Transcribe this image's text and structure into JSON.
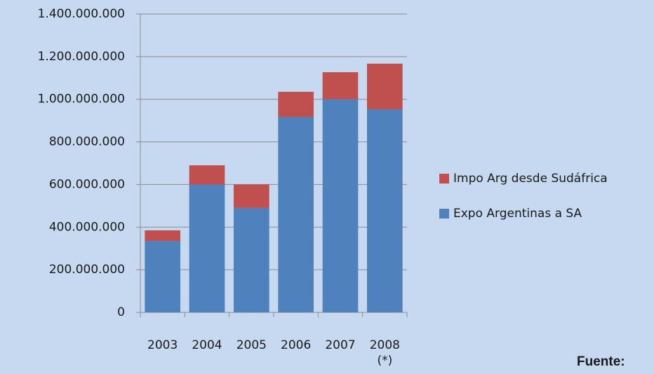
{
  "chart_data": {
    "type": "stacked_bar",
    "categories": [
      "2003",
      "2004",
      "2005",
      "2006",
      "2007",
      "2008\n(*)"
    ],
    "series": [
      {
        "name": "Expo Argentinas a SA",
        "color": "#4f81bd",
        "values": [
          335000000,
          600000000,
          490000000,
          917000000,
          1000000000,
          953000000
        ]
      },
      {
        "name": "Impo Arg desde Sudáfrica",
        "color": "#c0504d",
        "values": [
          50000000,
          90000000,
          110000000,
          118000000,
          127000000,
          214000000
        ]
      }
    ],
    "ylim": [
      0,
      1400000000
    ],
    "yticks": [
      0,
      {
        "value": 200000000,
        "label": "200.000.000"
      },
      {
        "value": 400000000,
        "label": "400.000.000"
      },
      {
        "value": 600000000,
        "label": "600.000.000"
      },
      {
        "value": 800000000,
        "label": "800.000.000"
      },
      {
        "value": 1000000000,
        "label": "1.000.000.000"
      },
      {
        "value": 1200000000,
        "label": "1.200.000.000"
      },
      {
        "value": 1400000000,
        "label": "1.400.000.000"
      }
    ],
    "grid": true,
    "legend": "right",
    "footer_text": "Fuente:"
  }
}
